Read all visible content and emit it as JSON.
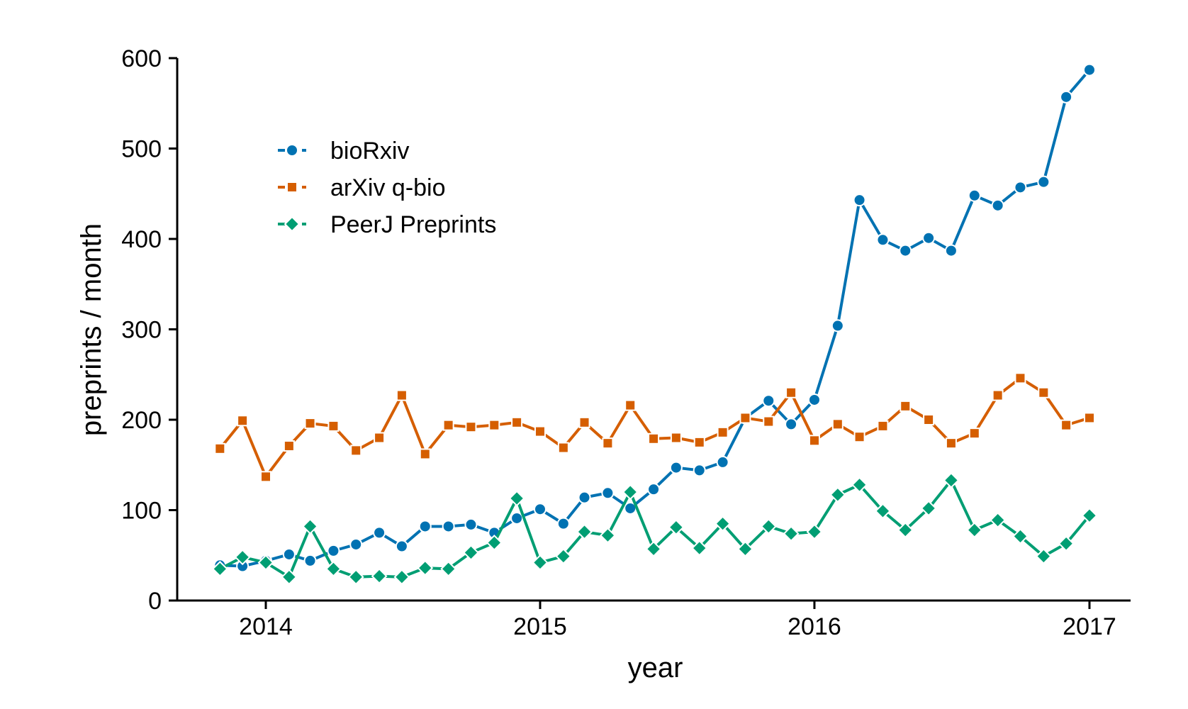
{
  "chart_data": {
    "type": "line",
    "title": "",
    "xlabel": "year",
    "ylabel": "preprints / month",
    "xlim": [
      "2013-10-15",
      "2017-02-01"
    ],
    "ylim": [
      0,
      600
    ],
    "x_ticks": [
      "2014-01-01",
      "2015-01-01",
      "2016-01-01",
      "2017-01-01"
    ],
    "x_tick_labels": [
      "2014",
      "2015",
      "2016",
      "2017"
    ],
    "y_ticks": [
      0,
      100,
      200,
      300,
      400,
      500,
      600
    ],
    "y_tick_labels": [
      "0",
      "100",
      "200",
      "300",
      "400",
      "500",
      "600"
    ],
    "grid": false,
    "legend_placement": "top-left",
    "x": [
      "2013-11-01",
      "2013-12-01",
      "2014-01-01",
      "2014-02-01",
      "2014-03-01",
      "2014-04-01",
      "2014-05-01",
      "2014-06-01",
      "2014-07-01",
      "2014-08-01",
      "2014-09-01",
      "2014-10-01",
      "2014-11-01",
      "2014-12-01",
      "2015-01-01",
      "2015-02-01",
      "2015-03-01",
      "2015-04-01",
      "2015-05-01",
      "2015-06-01",
      "2015-07-01",
      "2015-08-01",
      "2015-09-01",
      "2015-10-01",
      "2015-11-01",
      "2015-12-01",
      "2016-01-01",
      "2016-02-01",
      "2016-03-01",
      "2016-04-01",
      "2016-05-01",
      "2016-06-01",
      "2016-07-01",
      "2016-08-01",
      "2016-09-01",
      "2016-10-01",
      "2016-11-01",
      "2016-12-01",
      "2017-01-01"
    ],
    "series": [
      {
        "name": "bioRxiv",
        "color": "#0072B2",
        "marker": "circle",
        "values": [
          39,
          38,
          44,
          51,
          44,
          55,
          62,
          75,
          60,
          82,
          82,
          84,
          75,
          91,
          101,
          85,
          114,
          119,
          102,
          123,
          147,
          144,
          153,
          202,
          221,
          195,
          222,
          304,
          443,
          399,
          387,
          401,
          387,
          448,
          437,
          457,
          463,
          557,
          587
        ]
      },
      {
        "name": "arXiv q-bio",
        "color": "#D55E00",
        "marker": "square",
        "values": [
          168,
          199,
          137,
          171,
          196,
          193,
          166,
          180,
          227,
          162,
          194,
          192,
          194,
          197,
          187,
          169,
          197,
          174,
          216,
          179,
          180,
          175,
          186,
          202,
          198,
          230,
          177,
          195,
          181,
          193,
          215,
          200,
          174,
          185,
          227,
          246,
          230,
          194,
          202
        ]
      },
      {
        "name": "PeerJ Preprints",
        "color": "#009E73",
        "marker": "diamond",
        "values": [
          35,
          48,
          42,
          26,
          82,
          35,
          26,
          27,
          26,
          36,
          35,
          53,
          64,
          113,
          42,
          49,
          76,
          72,
          120,
          57,
          81,
          58,
          85,
          57,
          82,
          74,
          76,
          117,
          128,
          99,
          78,
          102,
          133,
          78,
          89,
          71,
          49,
          63,
          94
        ]
      }
    ]
  }
}
